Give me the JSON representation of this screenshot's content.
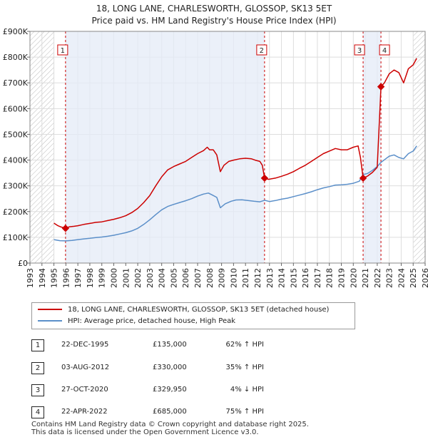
{
  "chart_data": {
    "type": "line",
    "title": "18, LONG LANE, CHARLESWORTH, GLOSSOP, SK13 5ET",
    "subtitle": "Price paid vs. HM Land Registry's House Price Index (HPI)",
    "xlabel": "",
    "ylabel": "",
    "xlim": [
      1993,
      2026
    ],
    "ylim": [
      0,
      900000
    ],
    "x_ticks": [
      1993,
      1994,
      1995,
      1996,
      1997,
      1998,
      1999,
      2000,
      2001,
      2002,
      2003,
      2004,
      2005,
      2006,
      2007,
      2008,
      2009,
      2010,
      2011,
      2012,
      2013,
      2014,
      2015,
      2016,
      2017,
      2018,
      2019,
      2020,
      2021,
      2022,
      2023,
      2024,
      2025,
      2026
    ],
    "y_ticks": [
      {
        "value": 0,
        "label": "£0"
      },
      {
        "value": 100000,
        "label": "£100K"
      },
      {
        "value": 200000,
        "label": "£200K"
      },
      {
        "value": 300000,
        "label": "£300K"
      },
      {
        "value": 400000,
        "label": "£400K"
      },
      {
        "value": 500000,
        "label": "£500K"
      },
      {
        "value": 600000,
        "label": "£600K"
      },
      {
        "value": 700000,
        "label": "£700K"
      },
      {
        "value": 800000,
        "label": "£800K"
      },
      {
        "value": 900000,
        "label": "£900K"
      }
    ],
    "hatch_ranges": [
      [
        1993,
        1995.0
      ],
      [
        2025.0,
        2026
      ]
    ],
    "shade_ranges": [
      [
        1995.97,
        2012.59
      ],
      [
        2020.82,
        2022.31
      ]
    ],
    "series": [
      {
        "name": "18, LONG LANE, CHARLESWORTH, GLOSSOP, SK13 5ET (detached house)",
        "color": "#cc0000",
        "points": [
          [
            1995.0,
            155000
          ],
          [
            1995.3,
            146000
          ],
          [
            1995.6,
            140000
          ],
          [
            1995.97,
            135000
          ],
          [
            1996.3,
            141000
          ],
          [
            1996.7,
            143000
          ],
          [
            1997.0,
            145000
          ],
          [
            1997.5,
            150000
          ],
          [
            1998.0,
            154000
          ],
          [
            1998.5,
            158000
          ],
          [
            1999.0,
            160000
          ],
          [
            1999.5,
            165000
          ],
          [
            2000.0,
            170000
          ],
          [
            2000.5,
            176000
          ],
          [
            2001.0,
            184000
          ],
          [
            2001.5,
            196000
          ],
          [
            2002.0,
            212000
          ],
          [
            2002.5,
            235000
          ],
          [
            2003.0,
            262000
          ],
          [
            2003.5,
            300000
          ],
          [
            2004.0,
            335000
          ],
          [
            2004.5,
            362000
          ],
          [
            2005.0,
            375000
          ],
          [
            2005.5,
            385000
          ],
          [
            2006.0,
            395000
          ],
          [
            2006.5,
            410000
          ],
          [
            2007.0,
            425000
          ],
          [
            2007.5,
            437000
          ],
          [
            2007.8,
            450000
          ],
          [
            2008.0,
            440000
          ],
          [
            2008.3,
            440000
          ],
          [
            2008.6,
            420000
          ],
          [
            2008.9,
            355000
          ],
          [
            2009.2,
            380000
          ],
          [
            2009.6,
            395000
          ],
          [
            2010.0,
            400000
          ],
          [
            2010.5,
            405000
          ],
          [
            2011.0,
            407000
          ],
          [
            2011.5,
            405000
          ],
          [
            2011.8,
            400000
          ],
          [
            2012.2,
            395000
          ],
          [
            2012.4,
            380000
          ],
          [
            2012.59,
            330000
          ],
          [
            2012.9,
            325000
          ],
          [
            2013.5,
            330000
          ],
          [
            2014.0,
            337000
          ],
          [
            2014.5,
            345000
          ],
          [
            2015.0,
            355000
          ],
          [
            2015.5,
            368000
          ],
          [
            2016.0,
            380000
          ],
          [
            2016.5,
            395000
          ],
          [
            2017.0,
            410000
          ],
          [
            2017.5,
            425000
          ],
          [
            2018.0,
            435000
          ],
          [
            2018.5,
            445000
          ],
          [
            2019.0,
            440000
          ],
          [
            2019.5,
            440000
          ],
          [
            2020.0,
            450000
          ],
          [
            2020.4,
            455000
          ],
          [
            2020.6,
            410000
          ],
          [
            2020.82,
            329950
          ],
          [
            2021.2,
            338000
          ],
          [
            2021.6,
            352000
          ],
          [
            2022.0,
            372000
          ],
          [
            2022.31,
            685000
          ],
          [
            2022.6,
            700000
          ],
          [
            2023.0,
            735000
          ],
          [
            2023.4,
            750000
          ],
          [
            2023.8,
            740000
          ],
          [
            2024.2,
            700000
          ],
          [
            2024.6,
            755000
          ],
          [
            2025.0,
            770000
          ],
          [
            2025.3,
            795000
          ]
        ]
      },
      {
        "name": "HPI: Average price, detached house, High Peak",
        "color": "#5b8fc9",
        "points": [
          [
            1995.0,
            91000
          ],
          [
            1995.5,
            87000
          ],
          [
            1996.0,
            86000
          ],
          [
            1996.5,
            88000
          ],
          [
            1997.0,
            91000
          ],
          [
            1997.5,
            94000
          ],
          [
            1998.0,
            96000
          ],
          [
            1998.5,
            99000
          ],
          [
            1999.0,
            101000
          ],
          [
            1999.5,
            104000
          ],
          [
            2000.0,
            108000
          ],
          [
            2000.5,
            113000
          ],
          [
            2001.0,
            118000
          ],
          [
            2001.5,
            125000
          ],
          [
            2002.0,
            135000
          ],
          [
            2002.5,
            150000
          ],
          [
            2003.0,
            168000
          ],
          [
            2003.5,
            188000
          ],
          [
            2004.0,
            207000
          ],
          [
            2004.5,
            220000
          ],
          [
            2005.0,
            228000
          ],
          [
            2005.5,
            235000
          ],
          [
            2006.0,
            242000
          ],
          [
            2006.5,
            250000
          ],
          [
            2007.0,
            260000
          ],
          [
            2007.5,
            268000
          ],
          [
            2007.9,
            272000
          ],
          [
            2008.2,
            265000
          ],
          [
            2008.6,
            255000
          ],
          [
            2008.9,
            215000
          ],
          [
            2009.3,
            230000
          ],
          [
            2009.8,
            240000
          ],
          [
            2010.2,
            245000
          ],
          [
            2010.7,
            246000
          ],
          [
            2011.2,
            243000
          ],
          [
            2011.7,
            240000
          ],
          [
            2012.2,
            238000
          ],
          [
            2012.59,
            244000
          ],
          [
            2013.0,
            239000
          ],
          [
            2013.5,
            243000
          ],
          [
            2014.0,
            248000
          ],
          [
            2014.5,
            252000
          ],
          [
            2015.0,
            258000
          ],
          [
            2015.5,
            264000
          ],
          [
            2016.0,
            270000
          ],
          [
            2016.5,
            277000
          ],
          [
            2017.0,
            285000
          ],
          [
            2017.5,
            292000
          ],
          [
            2018.0,
            297000
          ],
          [
            2018.5,
            303000
          ],
          [
            2019.0,
            304000
          ],
          [
            2019.5,
            306000
          ],
          [
            2020.0,
            310000
          ],
          [
            2020.5,
            318000
          ],
          [
            2020.82,
            344000
          ],
          [
            2021.2,
            348000
          ],
          [
            2021.6,
            360000
          ],
          [
            2022.0,
            375000
          ],
          [
            2022.31,
            391000
          ],
          [
            2022.7,
            405000
          ],
          [
            2023.0,
            415000
          ],
          [
            2023.4,
            420000
          ],
          [
            2023.8,
            410000
          ],
          [
            2024.2,
            405000
          ],
          [
            2024.6,
            425000
          ],
          [
            2025.0,
            435000
          ],
          [
            2025.3,
            455000
          ]
        ]
      }
    ],
    "sale_markers": [
      {
        "label": "1",
        "x": 1995.97,
        "y": 135000
      },
      {
        "label": "2",
        "x": 2012.59,
        "y": 330000
      },
      {
        "label": "3",
        "x": 2020.82,
        "y": 329950
      },
      {
        "label": "4",
        "x": 2022.31,
        "y": 685000
      }
    ],
    "legend": {
      "entries": [
        {
          "label": "18, LONG LANE, CHARLESWORTH, GLOSSOP, SK13 5ET (detached house)",
          "color": "#cc0000"
        },
        {
          "label": "HPI: Average price, detached house, High Peak",
          "color": "#5b8fc9"
        }
      ]
    }
  },
  "sales": [
    {
      "num": "1",
      "date": "22-DEC-1995",
      "price": "£135,000",
      "hpi": "62% ↑ HPI"
    },
    {
      "num": "2",
      "date": "03-AUG-2012",
      "price": "£330,000",
      "hpi": "35% ↑ HPI"
    },
    {
      "num": "3",
      "date": "27-OCT-2020",
      "price": "£329,950",
      "hpi": "4% ↓ HPI"
    },
    {
      "num": "4",
      "date": "22-APR-2022",
      "price": "£685,000",
      "hpi": "75% ↑ HPI"
    }
  ],
  "footer": {
    "line1": "Contains HM Land Registry data © Crown copyright and database right 2025.",
    "line2": "This data is licensed under the Open Government Licence v3.0."
  }
}
